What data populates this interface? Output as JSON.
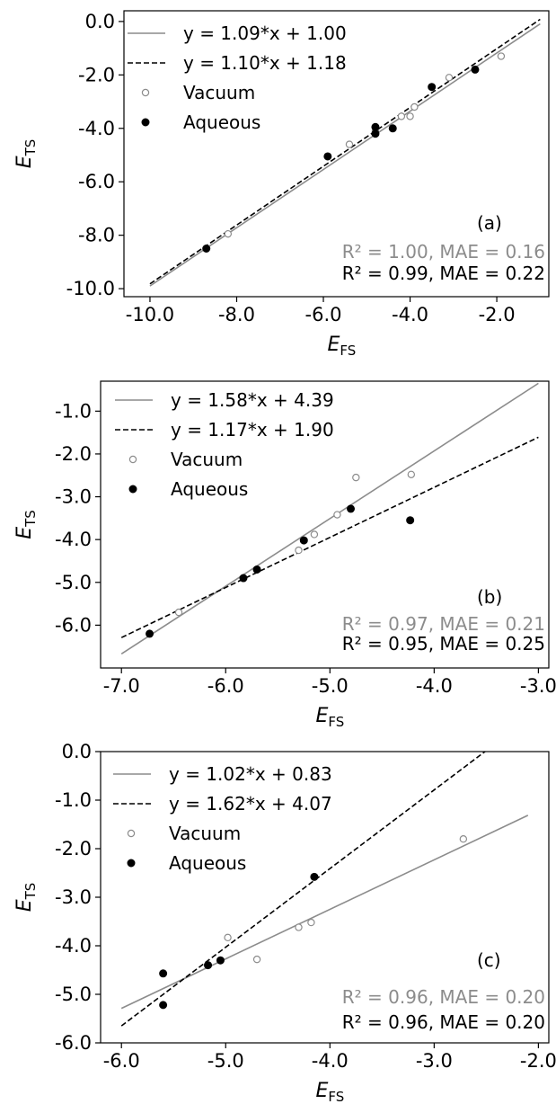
{
  "colors": {
    "vacuum": "#8c8c8c",
    "aqueous": "#000000",
    "axis": "#000000"
  },
  "chart_data": [
    {
      "type": "scatter",
      "panel_label": "(a)",
      "xlabel_main": "E",
      "xlabel_sub": "FS",
      "ylabel_main": "E",
      "ylabel_sub": "TS",
      "xlim": [
        -10.6,
        -0.8
      ],
      "ylim": [
        -10.3,
        0.4
      ],
      "xticks": [
        {
          "v": -10.0,
          "label": "-10.0"
        },
        {
          "v": -8.0,
          "label": "-8.0"
        },
        {
          "v": -6.0,
          "label": "-6.0"
        },
        {
          "v": -4.0,
          "label": "-4.0"
        },
        {
          "v": -2.0,
          "label": "-2.0"
        }
      ],
      "yticks": [
        {
          "v": 0.0,
          "label": "0.0"
        },
        {
          "v": -2.0,
          "label": "-2.0"
        },
        {
          "v": -4.0,
          "label": "-4.0"
        },
        {
          "v": -6.0,
          "label": "-6.0"
        },
        {
          "v": -8.0,
          "label": "-8.0"
        },
        {
          "v": -10.0,
          "label": "-10.0"
        }
      ],
      "series": [
        {
          "name": "Vacuum",
          "marker": "open",
          "color": "#8c8c8c",
          "points": [
            [
              -8.2,
              -7.95
            ],
            [
              -5.4,
              -4.6
            ],
            [
              -4.8,
              -4.1
            ],
            [
              -4.2,
              -3.55
            ],
            [
              -4.0,
              -3.55
            ],
            [
              -3.9,
              -3.2
            ],
            [
              -3.1,
              -2.1
            ],
            [
              -1.9,
              -1.3
            ]
          ],
          "fit": {
            "label": "y = 1.09*x + 1.00",
            "slope": 1.09,
            "intercept": 1.0,
            "style": "solid",
            "x_range": [
              -10.0,
              -1.0
            ]
          },
          "stats": "R² = 1.00, MAE = 0.16"
        },
        {
          "name": "Aqueous",
          "marker": "filled",
          "color": "#000000",
          "points": [
            [
              -8.7,
              -8.5
            ],
            [
              -5.9,
              -5.05
            ],
            [
              -4.8,
              -3.95
            ],
            [
              -4.8,
              -4.2
            ],
            [
              -4.4,
              -4.0
            ],
            [
              -3.5,
              -2.45
            ],
            [
              -2.5,
              -1.8
            ]
          ],
          "fit": {
            "label": "y = 1.10*x + 1.18",
            "slope": 1.1,
            "intercept": 1.18,
            "style": "dashed",
            "x_range": [
              -10.0,
              -1.0
            ]
          },
          "stats": "R² = 0.99, MAE = 0.22"
        }
      ]
    },
    {
      "type": "scatter",
      "panel_label": "(b)",
      "xlabel_main": "E",
      "xlabel_sub": "FS",
      "ylabel_main": "E",
      "ylabel_sub": "TS",
      "xlim": [
        -7.2,
        -2.9
      ],
      "ylim": [
        -7.0,
        -0.3
      ],
      "xticks": [
        {
          "v": -7.0,
          "label": "-7.0"
        },
        {
          "v": -6.0,
          "label": "-6.0"
        },
        {
          "v": -5.0,
          "label": "-5.0"
        },
        {
          "v": -4.0,
          "label": "-4.0"
        },
        {
          "v": -3.0,
          "label": "-3.0"
        }
      ],
      "yticks": [
        {
          "v": -1.0,
          "label": "-1.0"
        },
        {
          "v": -2.0,
          "label": "-2.0"
        },
        {
          "v": -3.0,
          "label": "-3.0"
        },
        {
          "v": -4.0,
          "label": "-4.0"
        },
        {
          "v": -5.0,
          "label": "-5.0"
        },
        {
          "v": -6.0,
          "label": "-6.0"
        }
      ],
      "series": [
        {
          "name": "Vacuum",
          "marker": "open",
          "color": "#8c8c8c",
          "points": [
            [
              -6.45,
              -5.7
            ],
            [
              -5.3,
              -4.25
            ],
            [
              -5.15,
              -3.88
            ],
            [
              -4.93,
              -3.42
            ],
            [
              -4.75,
              -2.55
            ],
            [
              -4.22,
              -2.48
            ]
          ],
          "fit": {
            "label": "y = 1.58*x + 4.39",
            "slope": 1.58,
            "intercept": 4.39,
            "style": "solid",
            "x_range": [
              -7.0,
              -3.0
            ]
          },
          "stats": "R² = 0.97, MAE = 0.21"
        },
        {
          "name": "Aqueous",
          "marker": "filled",
          "color": "#000000",
          "points": [
            [
              -6.73,
              -6.2
            ],
            [
              -5.83,
              -4.9
            ],
            [
              -5.7,
              -4.7
            ],
            [
              -5.25,
              -4.02
            ],
            [
              -4.8,
              -3.28
            ],
            [
              -4.23,
              -3.55
            ]
          ],
          "fit": {
            "label": "y = 1.17*x + 1.90",
            "slope": 1.17,
            "intercept": 1.9,
            "style": "dashed",
            "x_range": [
              -7.0,
              -3.0
            ]
          },
          "stats": "R² = 0.95, MAE = 0.25"
        }
      ]
    },
    {
      "type": "scatter",
      "panel_label": "(c)",
      "xlabel_main": "E",
      "xlabel_sub": "FS",
      "ylabel_main": "E",
      "ylabel_sub": "TS",
      "xlim": [
        -6.2,
        -1.9
      ],
      "ylim": [
        -6.0,
        0.0
      ],
      "xticks": [
        {
          "v": -6.0,
          "label": "-6.0"
        },
        {
          "v": -5.0,
          "label": "-5.0"
        },
        {
          "v": -4.0,
          "label": "-4.0"
        },
        {
          "v": -3.0,
          "label": "-3.0"
        },
        {
          "v": -2.0,
          "label": "-2.0"
        }
      ],
      "yticks": [
        {
          "v": 0.0,
          "label": "0.0"
        },
        {
          "v": -1.0,
          "label": "-1.0"
        },
        {
          "v": -2.0,
          "label": "-2.0"
        },
        {
          "v": -3.0,
          "label": "-3.0"
        },
        {
          "v": -4.0,
          "label": "-4.0"
        },
        {
          "v": -5.0,
          "label": "-5.0"
        },
        {
          "v": -6.0,
          "label": "-6.0"
        }
      ],
      "series": [
        {
          "name": "Vacuum",
          "marker": "open",
          "color": "#8c8c8c",
          "points": [
            [
              -4.98,
              -3.83
            ],
            [
              -4.7,
              -4.28
            ],
            [
              -4.3,
              -3.62
            ],
            [
              -4.18,
              -3.52
            ],
            [
              -2.72,
              -1.8
            ]
          ],
          "fit": {
            "label": "y = 1.02*x + 0.83",
            "slope": 1.02,
            "intercept": 0.83,
            "style": "solid",
            "x_range": [
              -6.0,
              -2.1
            ]
          },
          "stats": "R² = 0.96, MAE = 0.20"
        },
        {
          "name": "Aqueous",
          "marker": "filled",
          "color": "#000000",
          "points": [
            [
              -5.6,
              -4.57
            ],
            [
              -5.6,
              -5.22
            ],
            [
              -5.17,
              -4.4
            ],
            [
              -5.05,
              -4.3
            ],
            [
              -4.15,
              -2.58
            ]
          ],
          "fit": {
            "label": "y = 1.62*x + 4.07",
            "slope": 1.62,
            "intercept": 4.07,
            "style": "dashed",
            "x_range": [
              -6.0,
              -2.5
            ]
          },
          "stats": "R² = 0.96, MAE = 0.20"
        }
      ]
    }
  ]
}
